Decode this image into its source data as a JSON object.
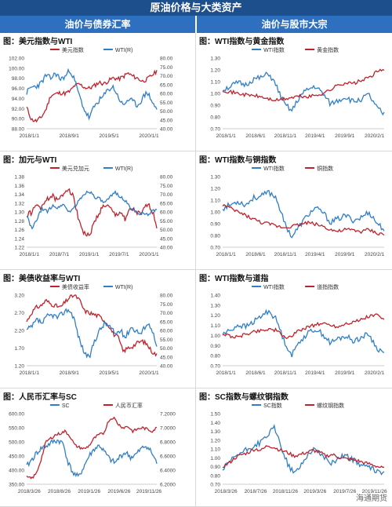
{
  "header": {
    "title": "原油价格与大类资产"
  },
  "sections": {
    "left": "油价与债券汇率",
    "right": "油价与股市大宗"
  },
  "colors": {
    "red": "#c0222b",
    "blue": "#2f7ec9"
  },
  "watermark": "海通期货",
  "panels": [
    {
      "id": "dxy-wti",
      "title": "图：美元指数与WTI",
      "legend": [
        "美元指数",
        "WTI(R)"
      ],
      "left_ticks": [
        "102.00",
        "100.00",
        "98.00",
        "96.00",
        "94.00",
        "92.00",
        "90.00",
        "88.00"
      ],
      "right_ticks": [
        "80.00",
        "75.00",
        "70.00",
        "65.00",
        "60.00",
        "55.00",
        "50.00",
        "45.00",
        "40.00"
      ],
      "x_ticks": [
        "2018/1/1",
        "2018/9/1",
        "2019/5/1",
        "2020/1/1"
      ],
      "chart_data": {
        "type": "line",
        "ylim": [
          88,
          102
        ],
        "y2lim": [
          40,
          80
        ],
        "series": [
          {
            "name": "美元指数",
            "axis": "left",
            "values": [
              92.2,
              89.8,
              89.5,
              90.2,
              91.8,
              94.6,
              94.9,
              95.1,
              95.0,
              95.4,
              96.6,
              96.8,
              96.2,
              96.0,
              96.5,
              97.2,
              96.9,
              97.5,
              98.1,
              97.8,
              98.3,
              99.0,
              98.4,
              98.0,
              97.4,
              97.8,
              98.6,
              99.4
            ]
          },
          {
            "name": "WTI(R)",
            "axis": "right",
            "values": [
              60.5,
              63.5,
              64.0,
              65.8,
              70.2,
              68.5,
              71.5,
              68.0,
              69.5,
              73.5,
              67.0,
              58.0,
              50.5,
              46.0,
              52.5,
              56.0,
              58.5,
              62.5,
              63.5,
              58.0,
              53.0,
              56.5,
              55.5,
              53.0,
              57.0,
              61.0,
              55.5,
              50.5
            ]
          }
        ]
      }
    },
    {
      "id": "wti-gold",
      "title": "图：WTI指数与黄金指数",
      "legend": [
        "WTI指数",
        "黄金指数"
      ],
      "left_ticks": [
        "1.30",
        "1.20",
        "1.10",
        "1.00",
        "0.90",
        "0.80",
        "0.70"
      ],
      "x_ticks": [
        "2018/1/1",
        "2018/6/1",
        "2018/11/1",
        "2019/4/1",
        "2019/9/1",
        "2020/2/1"
      ],
      "chart_data": {
        "type": "line",
        "ylim": [
          0.7,
          1.3
        ],
        "series": [
          {
            "name": "WTI指数"
          },
          {
            "name": "黄金指数"
          }
        ]
      }
    },
    {
      "id": "cad-wti",
      "title": "图：加元与WTI",
      "legend": [
        "美元兑加元",
        "WTI(R)"
      ],
      "left_ticks": [
        "1.38",
        "1.36",
        "1.34",
        "1.32",
        "1.30",
        "1.28",
        "1.26",
        "1.24",
        "1.22"
      ],
      "right_ticks": [
        "80.00",
        "75.00",
        "70.00",
        "65.00",
        "60.00",
        "55.00",
        "50.00",
        "45.00",
        "40.00"
      ],
      "x_ticks": [
        "2018/1/1",
        "2018/7/1",
        "2019/1/1",
        "2019/7/1",
        "2020/1/1"
      ],
      "chart_data": {
        "type": "line",
        "ylim": [
          1.22,
          1.38
        ],
        "y2lim": [
          40,
          80
        ],
        "series": [
          {
            "name": "美元兑加元",
            "axis": "left"
          },
          {
            "name": "WTI(R)",
            "axis": "right"
          }
        ]
      }
    },
    {
      "id": "wti-copper",
      "title": "图：WTI指数与铜指数",
      "legend": [
        "WTI指数",
        "铜指数"
      ],
      "left_ticks": [
        "1.30",
        "1.20",
        "1.10",
        "1.00",
        "0.90",
        "0.80",
        "0.70"
      ],
      "x_ticks": [
        "2018/1/1",
        "2018/6/1",
        "2018/11/1",
        "2019/4/1",
        "2019/9/1",
        "2020/2/1"
      ],
      "chart_data": {
        "type": "line",
        "ylim": [
          0.7,
          1.3
        ],
        "series": [
          {
            "name": "WTI指数"
          },
          {
            "name": "铜指数"
          }
        ]
      }
    },
    {
      "id": "ust-wti",
      "title": "图：美债收益率与WTI",
      "legend": [
        "美债收益率",
        "WTI(R)"
      ],
      "left_ticks": [
        "3.20",
        "2.70",
        "2.20",
        "1.70",
        "1.20"
      ],
      "right_ticks": [
        "80.00",
        "75.00",
        "70.00",
        "65.00",
        "60.00",
        "55.00",
        "50.00",
        "45.00",
        "40.00"
      ],
      "x_ticks": [
        "2018/1/1",
        "2018/9/1",
        "2019/5/1",
        "2020/1/1"
      ],
      "chart_data": {
        "type": "line",
        "ylim": [
          1.2,
          3.2
        ],
        "y2lim": [
          40,
          80
        ],
        "series": [
          {
            "name": "美债收益率",
            "axis": "left",
            "values": [
              2.45,
              2.7,
              2.85,
              2.9,
              3.05,
              2.95,
              2.9,
              2.85,
              3.0,
              3.15,
              3.2,
              3.05,
              2.75,
              2.7,
              2.65,
              2.6,
              2.5,
              2.35,
              2.1,
              2.0,
              1.6,
              1.7,
              1.75,
              1.85,
              1.9,
              1.8,
              1.6,
              1.5
            ]
          },
          {
            "name": "WTI(R)",
            "axis": "right"
          }
        ]
      }
    },
    {
      "id": "wti-dow",
      "title": "图：WTI指数与道指",
      "legend": [
        "WTI指数",
        "道指指数"
      ],
      "left_ticks": [
        "1.40",
        "1.30",
        "1.20",
        "1.10",
        "1.00",
        "0.90",
        "0.80",
        "0.70"
      ],
      "x_ticks": [
        "2018/1/1",
        "2018/6/1",
        "2018/11/1",
        "2019/4/1",
        "2019/9/1",
        "2020/2/1"
      ],
      "chart_data": {
        "type": "line",
        "ylim": [
          0.7,
          1.4
        ],
        "series": [
          {
            "name": "WTI指数"
          },
          {
            "name": "道指指数"
          }
        ]
      }
    },
    {
      "id": "cny-sc",
      "title": "图：人民币汇率与SC",
      "legend": [
        "SC",
        "人民币汇率"
      ],
      "left_ticks": [
        "600.00",
        "550.00",
        "500.00",
        "450.00",
        "400.00",
        "350.00"
      ],
      "right_ticks": [
        "7.2000",
        "7.0000",
        "6.8000",
        "6.6000",
        "6.4000",
        "6.2000"
      ],
      "x_ticks": [
        "2018/3/26",
        "2018/8/26",
        "2019/1/26",
        "2019/6/26",
        "2019/11/26"
      ],
      "chart_data": {
        "type": "line",
        "ylim": [
          350,
          600
        ],
        "y2lim": [
          6.2,
          7.2
        ],
        "series": [
          {
            "name": "SC",
            "axis": "left"
          },
          {
            "name": "人民币汇率",
            "axis": "right",
            "values": [
              6.3,
              6.28,
              6.35,
              6.55,
              6.8,
              6.85,
              6.9,
              6.92,
              6.95,
              6.88,
              6.75,
              6.72,
              6.7,
              6.75,
              6.85,
              6.9,
              6.92,
              7.1,
              7.15,
              7.05,
              7.0,
              7.02,
              6.95,
              6.98,
              7.0,
              6.98,
              6.95,
              7.0
            ]
          }
        ]
      }
    },
    {
      "id": "sc-rebar",
      "title": "图：SC指数与螺纹钢指数",
      "legend": [
        "SC指数",
        "螺纹钢指数"
      ],
      "left_ticks": [
        "1.50",
        "1.40",
        "1.30",
        "1.20",
        "1.10",
        "1.00",
        "0.90",
        "0.80",
        "0.70"
      ],
      "x_ticks": [
        "2018/3/26",
        "2018/7/26",
        "2018/11/26",
        "2019/3/26",
        "2019/7/26",
        "2019/11/26"
      ],
      "chart_data": {
        "type": "line",
        "ylim": [
          0.7,
          1.5
        ],
        "series": [
          {
            "name": "SC指数"
          },
          {
            "name": "螺纹钢指数"
          }
        ]
      }
    }
  ]
}
